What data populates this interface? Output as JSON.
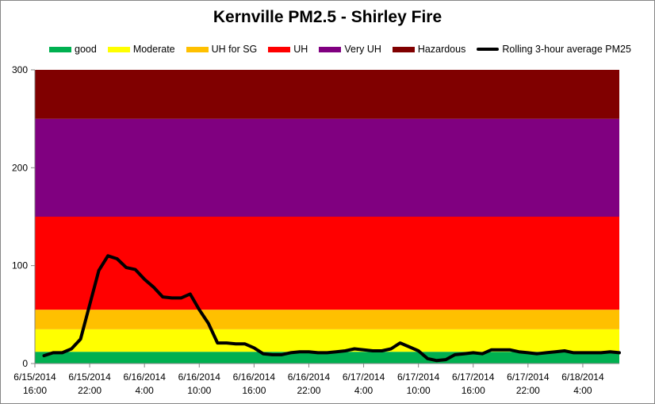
{
  "chart_data": {
    "type": "line",
    "title": "Kernville PM2.5 - Shirley Fire",
    "ylim": [
      0,
      300
    ],
    "y_ticks": [
      0,
      100,
      200,
      300
    ],
    "x_tick_labels": [
      [
        "6/15/2014",
        "16:00"
      ],
      [
        "6/15/2014",
        "22:00"
      ],
      [
        "6/16/2014",
        "4:00"
      ],
      [
        "6/16/2014",
        "10:00"
      ],
      [
        "6/16/2014",
        "16:00"
      ],
      [
        "6/16/2014",
        "22:00"
      ],
      [
        "6/17/2014",
        "4:00"
      ],
      [
        "6/17/2014",
        "10:00"
      ],
      [
        "6/17/2014",
        "16:00"
      ],
      [
        "6/17/2014",
        "22:00"
      ],
      [
        "6/18/2014",
        "4:00"
      ]
    ],
    "x_hours_range": [
      0,
      64
    ],
    "x_tick_hours": [
      0,
      6,
      12,
      18,
      24,
      30,
      36,
      42,
      48,
      54,
      60
    ],
    "bands": [
      {
        "name": "good",
        "from": 0,
        "to": 12,
        "color": "#00B050"
      },
      {
        "name": "Moderate",
        "from": 12,
        "to": 35,
        "color": "#FFFF00"
      },
      {
        "name": "UH for SG",
        "from": 35,
        "to": 55,
        "color": "#FFC000"
      },
      {
        "name": "UH",
        "from": 55,
        "to": 150,
        "color": "#FF0000"
      },
      {
        "name": "Very UH",
        "from": 150,
        "to": 250,
        "color": "#800080"
      },
      {
        "name": "Hazardous",
        "from": 250,
        "to": 300,
        "color": "#800000"
      }
    ],
    "series": [
      {
        "name": "Rolling 3-hour average PM25",
        "color": "#000000",
        "x": [
          1,
          2,
          3,
          4,
          5,
          6,
          7,
          8,
          9,
          10,
          11,
          12,
          13,
          14,
          15,
          16,
          17,
          18,
          19,
          20,
          21,
          22,
          23,
          24,
          25,
          26,
          27,
          28,
          29,
          30,
          31,
          32,
          33,
          34,
          35,
          36,
          37,
          38,
          39,
          40,
          41,
          42,
          43,
          44,
          45,
          46,
          47,
          48,
          49,
          50,
          51,
          52,
          53,
          54,
          55,
          56,
          57,
          58,
          59,
          60,
          61,
          62,
          63,
          64
        ],
        "y": [
          8,
          11,
          11,
          15,
          25,
          60,
          95,
          110,
          107,
          98,
          96,
          86,
          78,
          68,
          67,
          67,
          71,
          55,
          41,
          21,
          21,
          20,
          20,
          16,
          10,
          9,
          9,
          11,
          12,
          12,
          11,
          11,
          12,
          13,
          15,
          14,
          13,
          13,
          15,
          21,
          17,
          13,
          5,
          3,
          4,
          9,
          10,
          11,
          10,
          14,
          14,
          14,
          12,
          11,
          10,
          11,
          12,
          13,
          11,
          11,
          11,
          11,
          12,
          11
        ]
      }
    ]
  }
}
